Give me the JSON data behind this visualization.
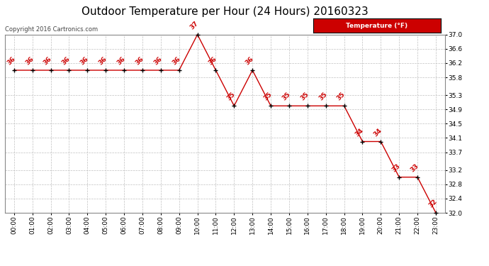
{
  "title": "Outdoor Temperature per Hour (24 Hours) 20160323",
  "copyright": "Copyright 2016 Cartronics.com",
  "legend_label": "Temperature (°F)",
  "hours": [
    "00:00",
    "01:00",
    "02:00",
    "03:00",
    "04:00",
    "05:00",
    "06:00",
    "07:00",
    "08:00",
    "09:00",
    "10:00",
    "11:00",
    "12:00",
    "13:00",
    "14:00",
    "15:00",
    "16:00",
    "17:00",
    "18:00",
    "19:00",
    "20:00",
    "21:00",
    "22:00",
    "23:00"
  ],
  "temperatures": [
    36,
    36,
    36,
    36,
    36,
    36,
    36,
    36,
    36,
    36,
    37,
    36,
    35,
    36,
    35,
    35,
    35,
    35,
    35,
    34,
    34,
    33,
    33,
    32
  ],
  "line_color": "#cc0000",
  "marker_color": "#000000",
  "label_color": "#cc0000",
  "bg_color": "#ffffff",
  "grid_color": "#c0c0c0",
  "border_color": "#888888",
  "ylim_min": 32.0,
  "ylim_max": 37.0,
  "yticks": [
    32.0,
    32.4,
    32.8,
    33.2,
    33.7,
    34.1,
    34.5,
    34.9,
    35.3,
    35.8,
    36.2,
    36.6,
    37.0
  ],
  "title_fontsize": 11,
  "annotation_fontsize": 6.5,
  "tick_fontsize": 6.5,
  "copyright_fontsize": 6
}
